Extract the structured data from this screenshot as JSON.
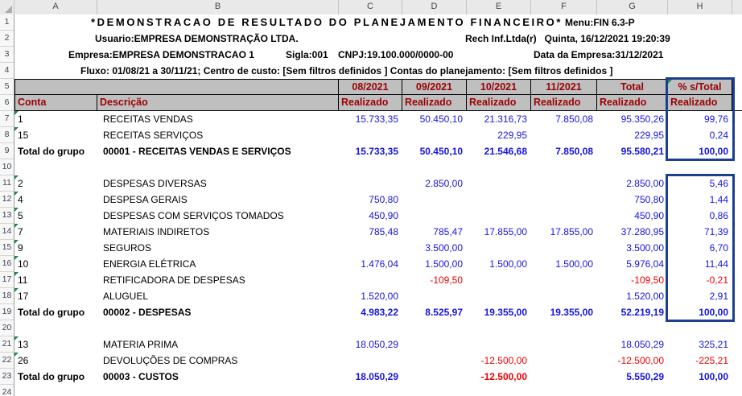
{
  "sheet": {
    "column_letters": [
      "A",
      "B",
      "C",
      "D",
      "E",
      "F",
      "G",
      "H"
    ],
    "row_count": 24
  },
  "title_block": {
    "line1_title": "*DEMONSTRACAO DE RESULTADO DO PLANEJAMENTO FINANCEIRO*",
    "line1_menu": "Menu:FIN 6.3-P",
    "line2_user": "Usuario:EMPRESA DEMONSTRAÇÃO LTDA.",
    "line2_right": "Rech Inf.Ltda(r)   Quinta, 16/12/2021 19:20:39",
    "line3_company": "Empresa:EMPRESA DEMONSTRACAO 1",
    "line3_sigla": "Sigla:001",
    "line3_cnpj": "CNPJ:19.100.000/0000-00",
    "line3_date": "Data da Empresa:31/12/2021",
    "line4_filters": "Fluxo: 01/08/21 a 30/11/21; Centro de custo: [Sem filtros definidos ] Contas do planejamento: [Sem filtros definidos ]"
  },
  "table": {
    "col_a_header": "Conta",
    "col_b_header": "Descrição",
    "period_headers": [
      "08/2021",
      "09/2021",
      "10/2021",
      "11/2021",
      "Total",
      "% s/Total"
    ],
    "realizado_label": "Realizado",
    "rows": [
      {
        "n": 7,
        "conta": "1",
        "desc": "RECEITAS VENDAS",
        "vals": [
          "15.733,35",
          "50.450,10",
          "21.316,73",
          "7.850,08",
          "95.350,26",
          "99,76"
        ],
        "marker": true
      },
      {
        "n": 8,
        "conta": "15",
        "desc": "RECEITAS SERVIÇOS",
        "vals": [
          "",
          "",
          "229,95",
          "",
          "229,95",
          "0,24"
        ],
        "marker": true
      },
      {
        "n": 9,
        "conta": "Total do grupo",
        "desc": "00001 - RECEITAS VENDAS E SERVIÇOS",
        "vals": [
          "15.733,35",
          "50.450,10",
          "21.546,68",
          "7.850,08",
          "95.580,21",
          "100,00"
        ],
        "total": true
      },
      {
        "n": 10,
        "empty": true
      },
      {
        "n": 11,
        "conta": "2",
        "desc": "DESPESAS DIVERSAS",
        "vals": [
          "",
          "2.850,00",
          "",
          "",
          "2.850,00",
          "5,46"
        ],
        "marker": true
      },
      {
        "n": 12,
        "conta": "4",
        "desc": "DESPESA GERAIS",
        "vals": [
          "750,80",
          "",
          "",
          "",
          "750,80",
          "1,44"
        ],
        "marker": true
      },
      {
        "n": 13,
        "conta": "5",
        "desc": "DESPESAS COM SERVIÇOS TOMADOS",
        "vals": [
          "450,90",
          "",
          "",
          "",
          "450,90",
          "0,86"
        ],
        "marker": true
      },
      {
        "n": 14,
        "conta": "7",
        "desc": "MATERIAIS INDIRETOS",
        "vals": [
          "785,48",
          "785,47",
          "17.855,00",
          "17.855,00",
          "37.280,95",
          "71,39"
        ],
        "marker": true
      },
      {
        "n": 15,
        "conta": "9",
        "desc": "SEGUROS",
        "vals": [
          "",
          "3.500,00",
          "",
          "",
          "3.500,00",
          "6,70"
        ],
        "marker": true
      },
      {
        "n": 16,
        "conta": "10",
        "desc": "ENERGIA ELÉTRICA",
        "vals": [
          "1.476,04",
          "1.500,00",
          "1.500,00",
          "1.500,00",
          "5.976,04",
          "11,44"
        ],
        "marker": true
      },
      {
        "n": 17,
        "conta": "11",
        "desc": "RETIFICADORA DE DESPESAS",
        "vals": [
          "",
          "-109,50",
          "",
          "",
          "-109,50",
          "-0,21"
        ],
        "marker": true
      },
      {
        "n": 18,
        "conta": "17",
        "desc": "ALUGUEL",
        "vals": [
          "1.520,00",
          "",
          "",
          "",
          "1.520,00",
          "2,91"
        ],
        "marker": true
      },
      {
        "n": 19,
        "conta": "Total do grupo",
        "desc": "00002 - DESPESAS",
        "vals": [
          "4.983,22",
          "8.525,97",
          "19.355,00",
          "19.355,00",
          "52.219,19",
          "100,00"
        ],
        "total": true
      },
      {
        "n": 20,
        "empty": true
      },
      {
        "n": 21,
        "conta": "13",
        "desc": "MATERIA PRIMA",
        "vals": [
          "18.050,29",
          "",
          "",
          "",
          "18.050,29",
          "325,21"
        ],
        "marker": true
      },
      {
        "n": 22,
        "conta": "26",
        "desc": "DEVOLUÇÕES DE COMPRAS",
        "vals": [
          "",
          "",
          "-12.500,00",
          "",
          "-12.500,00",
          "-225,21"
        ],
        "marker": true
      },
      {
        "n": 23,
        "conta": "Total do grupo",
        "desc": "00003 - CUSTOS",
        "vals": [
          "18.050,29",
          "",
          "-12.500,00",
          "",
          "5.550,29",
          "100,00"
        ],
        "total": true
      },
      {
        "n": 24,
        "empty": true
      }
    ]
  },
  "colors": {
    "header_text": "#9C0006",
    "header_bg": "#BFBFBF",
    "value_blue": "#1515E0",
    "negative_red": "#EE0000",
    "selection_box_blue": "#1C3F8F",
    "marker_green": "#1E8A45"
  }
}
